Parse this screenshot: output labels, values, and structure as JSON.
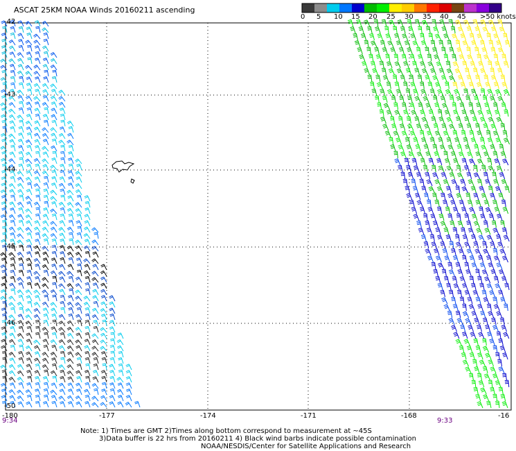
{
  "title": "ASCAT 25KM NOAA Winds 20160211 ascending",
  "legend": {
    "units": ">50 knots",
    "values": [
      "0",
      "5",
      "10",
      "15",
      "20",
      "25",
      "30",
      "35",
      "40",
      "45"
    ],
    "colors": [
      "#3a3a3a",
      "#8c8c8c",
      "#00ccee",
      "#0077ff",
      "#0000cc",
      "#00bb00",
      "#00ee00",
      "#ffee00",
      "#ffcc00",
      "#ff7700",
      "#ff2200",
      "#dd0000",
      "#774411",
      "#bb33cc",
      "#8800dd",
      "#330088"
    ]
  },
  "axes": {
    "longitudes": [
      "-180",
      "-177",
      "-174",
      "-171",
      "-168",
      "-16"
    ],
    "latitudes": [
      "-42",
      "-43",
      "-44",
      "-45",
      "-46",
      "-50"
    ]
  },
  "times": {
    "left": "9:34",
    "right": "9:33"
  },
  "notes": {
    "line1": "Note: 1) Times are GMT 2)Times along bottom correspond to measurement at ~45S",
    "line2": "3)Data buffer is 22 hrs from 20160211 4) Black wind barbs indicate possible contamination",
    "line3": "NOAA/NESDIS/Center for Satellite Applications and Research"
  }
}
